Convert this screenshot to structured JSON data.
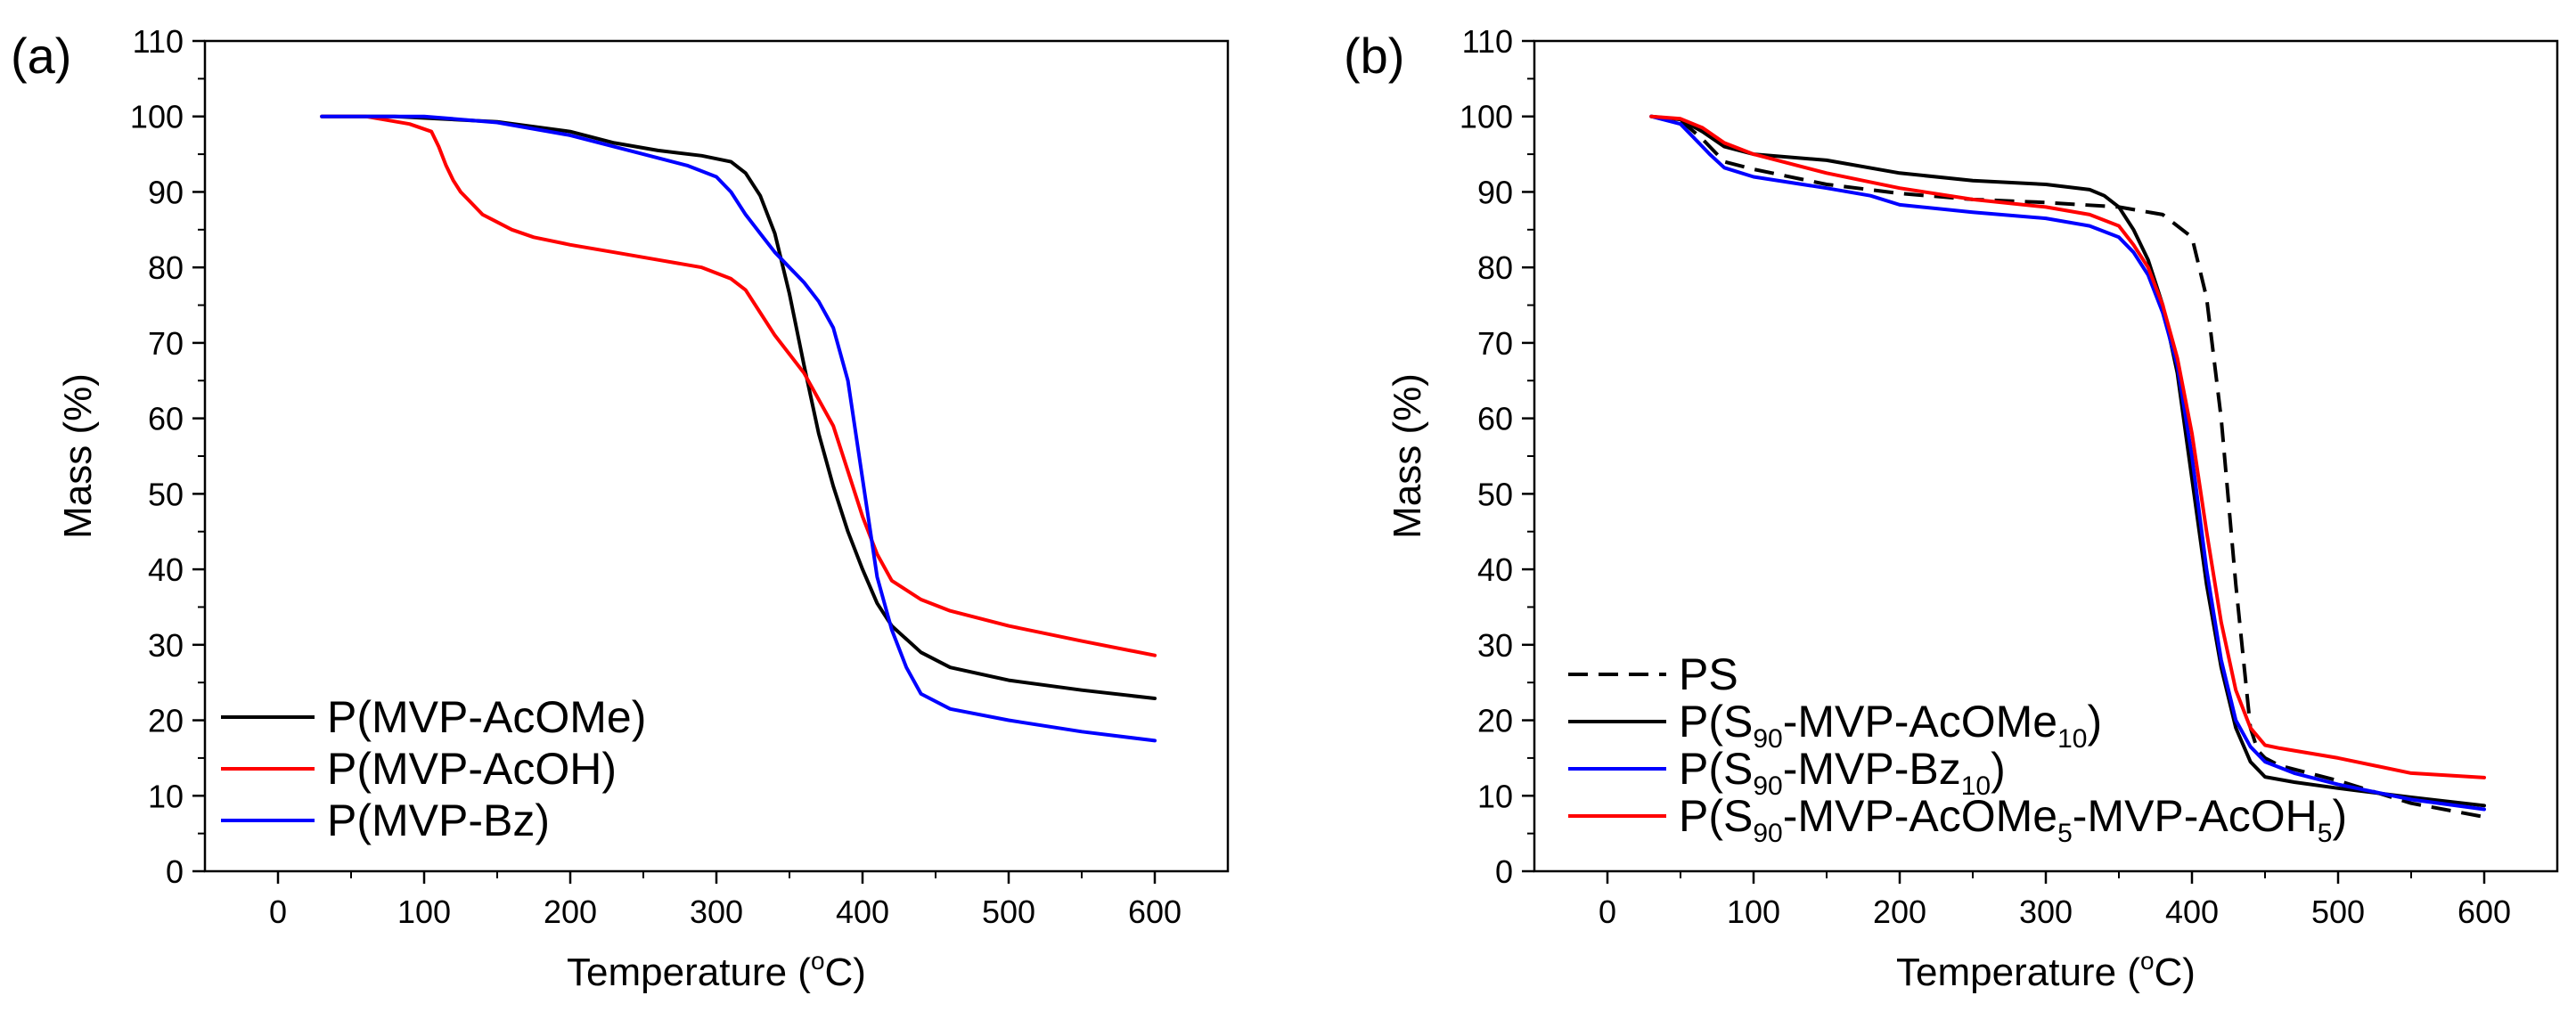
{
  "chart_data": [
    {
      "type": "line",
      "panel_label": "(a)",
      "xlabel": "Temperature (",
      "xlabel_sup": "o",
      "xlabel_end": "C)",
      "ylabel": "Mass (%)",
      "xlim": [
        -50,
        650
      ],
      "ylim": [
        0,
        110
      ],
      "xticks": [
        0,
        100,
        200,
        300,
        400,
        500,
        600
      ],
      "yticks": [
        0,
        10,
        20,
        30,
        40,
        50,
        60,
        70,
        80,
        90,
        100,
        110
      ],
      "grid": false,
      "legend_position": "bottom-left",
      "series": [
        {
          "name": "P(MVP-AcOMe)",
          "label_parts": [
            {
              "t": "P(MVP-AcOMe)"
            }
          ],
          "color": "#000000",
          "dash": "solid",
          "x": [
            30,
            80,
            150,
            200,
            230,
            260,
            290,
            310,
            320,
            330,
            340,
            350,
            360,
            370,
            380,
            390,
            400,
            410,
            420,
            440,
            460,
            500,
            550,
            600
          ],
          "y": [
            100,
            100,
            99.3,
            98,
            96.5,
            95.5,
            94.8,
            94,
            92.5,
            89.5,
            84.5,
            76.5,
            67,
            58,
            51,
            45,
            40,
            35.5,
            32.5,
            29,
            27,
            25.3,
            24,
            22.9
          ]
        },
        {
          "name": "P(MVP-AcOH)",
          "label_parts": [
            {
              "t": "P(MVP-AcOH)"
            }
          ],
          "color": "#ff0000",
          "dash": "solid",
          "x": [
            30,
            60,
            90,
            105,
            110,
            115,
            120,
            125,
            130,
            140,
            150,
            160,
            175,
            200,
            230,
            260,
            290,
            310,
            320,
            330,
            340,
            360,
            380,
            390,
            400,
            410,
            420,
            440,
            460,
            500,
            550,
            600
          ],
          "y": [
            100,
            100,
            99,
            98,
            96,
            93.5,
            91.5,
            90,
            89,
            87,
            86,
            85,
            84,
            83,
            82,
            81,
            80,
            78.5,
            77,
            74,
            71,
            66,
            59,
            53,
            47,
            42,
            38.5,
            36,
            34.5,
            32.5,
            30.5,
            28.6
          ]
        },
        {
          "name": "P(MVP-Bz)",
          "label_parts": [
            {
              "t": "P(MVP-Bz)"
            }
          ],
          "color": "#0000ff",
          "dash": "solid",
          "x": [
            30,
            100,
            150,
            200,
            250,
            280,
            300,
            310,
            320,
            330,
            340,
            350,
            360,
            370,
            380,
            390,
            400,
            410,
            420,
            430,
            440,
            460,
            500,
            550,
            600
          ],
          "y": [
            100,
            100,
            99.2,
            97.5,
            95,
            93.5,
            92,
            90,
            87,
            84.5,
            82,
            80,
            78,
            75.5,
            72,
            65,
            52,
            39,
            32,
            27,
            23.5,
            21.5,
            20,
            18.5,
            17.3
          ]
        }
      ]
    },
    {
      "type": "line",
      "panel_label": "(b)",
      "xlabel": "Temperature (",
      "xlabel_sup": "o",
      "xlabel_end": "C)",
      "ylabel": "Mass (%)",
      "xlim": [
        -50,
        650
      ],
      "ylim": [
        0,
        110
      ],
      "xticks": [
        0,
        100,
        200,
        300,
        400,
        500,
        600
      ],
      "yticks": [
        0,
        10,
        20,
        30,
        40,
        50,
        60,
        70,
        80,
        90,
        100,
        110
      ],
      "grid": false,
      "legend_position": "bottom-left",
      "series": [
        {
          "name": "PS",
          "label_parts": [
            {
              "t": "PS"
            }
          ],
          "color": "#000000",
          "dash": "dashed",
          "x": [
            30,
            50,
            65,
            80,
            100,
            150,
            200,
            250,
            300,
            350,
            380,
            400,
            410,
            420,
            430,
            440,
            445,
            450,
            460,
            500,
            550,
            600
          ],
          "y": [
            100,
            99.5,
            97,
            94,
            93,
            91,
            89.8,
            89,
            88.6,
            88,
            87,
            84,
            76,
            60,
            38,
            19,
            16,
            15,
            14,
            12,
            9,
            7.2
          ]
        },
        {
          "name": "P(S90-MVP-AcOMe10)",
          "label_parts": [
            {
              "t": "P(S"
            },
            {
              "t": "90",
              "sub": true
            },
            {
              "t": "-MVP-AcOMe"
            },
            {
              "t": "10",
              "sub": true
            },
            {
              "t": ")"
            }
          ],
          "color": "#000000",
          "dash": "solid",
          "x": [
            30,
            50,
            65,
            80,
            100,
            150,
            200,
            250,
            300,
            330,
            340,
            350,
            360,
            370,
            380,
            390,
            400,
            410,
            420,
            430,
            440,
            450,
            470,
            500,
            550,
            600
          ],
          "y": [
            100,
            99.6,
            98,
            96,
            95,
            94.2,
            92.5,
            91.5,
            91,
            90.3,
            89.5,
            88,
            85,
            81,
            75,
            66,
            52,
            38,
            27,
            19,
            14.5,
            12.5,
            11.8,
            11,
            9.8,
            8.7
          ]
        },
        {
          "name": "P(S90-MVP-Bz10)",
          "label_parts": [
            {
              "t": "P(S"
            },
            {
              "t": "90",
              "sub": true
            },
            {
              "t": "-MVP-Bz"
            },
            {
              "t": "10",
              "sub": true
            },
            {
              "t": ")"
            }
          ],
          "color": "#0000ff",
          "dash": "solid",
          "x": [
            30,
            50,
            60,
            70,
            80,
            100,
            150,
            180,
            200,
            250,
            300,
            330,
            350,
            360,
            370,
            380,
            390,
            400,
            410,
            420,
            430,
            440,
            450,
            470,
            500,
            550,
            600
          ],
          "y": [
            100,
            99,
            97,
            95,
            93.2,
            92,
            90.5,
            89.5,
            88.3,
            87.3,
            86.5,
            85.5,
            84,
            82,
            79,
            74,
            67,
            55,
            40,
            28,
            20,
            16.5,
            14.5,
            13,
            11.5,
            9.5,
            8.2
          ]
        },
        {
          "name": "P(S90-MVP-AcOMe5-MVP-AcOH5)",
          "label_parts": [
            {
              "t": "P(S"
            },
            {
              "t": "90",
              "sub": true
            },
            {
              "t": "-MVP-AcOMe"
            },
            {
              "t": "5",
              "sub": true
            },
            {
              "t": "-MVP-AcOH"
            },
            {
              "t": "5",
              "sub": true
            },
            {
              "t": ")"
            }
          ],
          "color": "#ff0000",
          "dash": "solid",
          "x": [
            30,
            50,
            65,
            80,
            100,
            150,
            200,
            250,
            300,
            330,
            350,
            360,
            370,
            380,
            390,
            400,
            410,
            420,
            430,
            440,
            450,
            460,
            500,
            550,
            600
          ],
          "y": [
            100,
            99.7,
            98.5,
            96.5,
            95,
            92.5,
            90.5,
            89,
            88,
            87,
            85.5,
            83,
            80,
            75,
            68,
            58,
            45,
            33,
            24,
            19,
            16.7,
            16.3,
            15,
            13,
            12.4
          ]
        }
      ]
    }
  ]
}
